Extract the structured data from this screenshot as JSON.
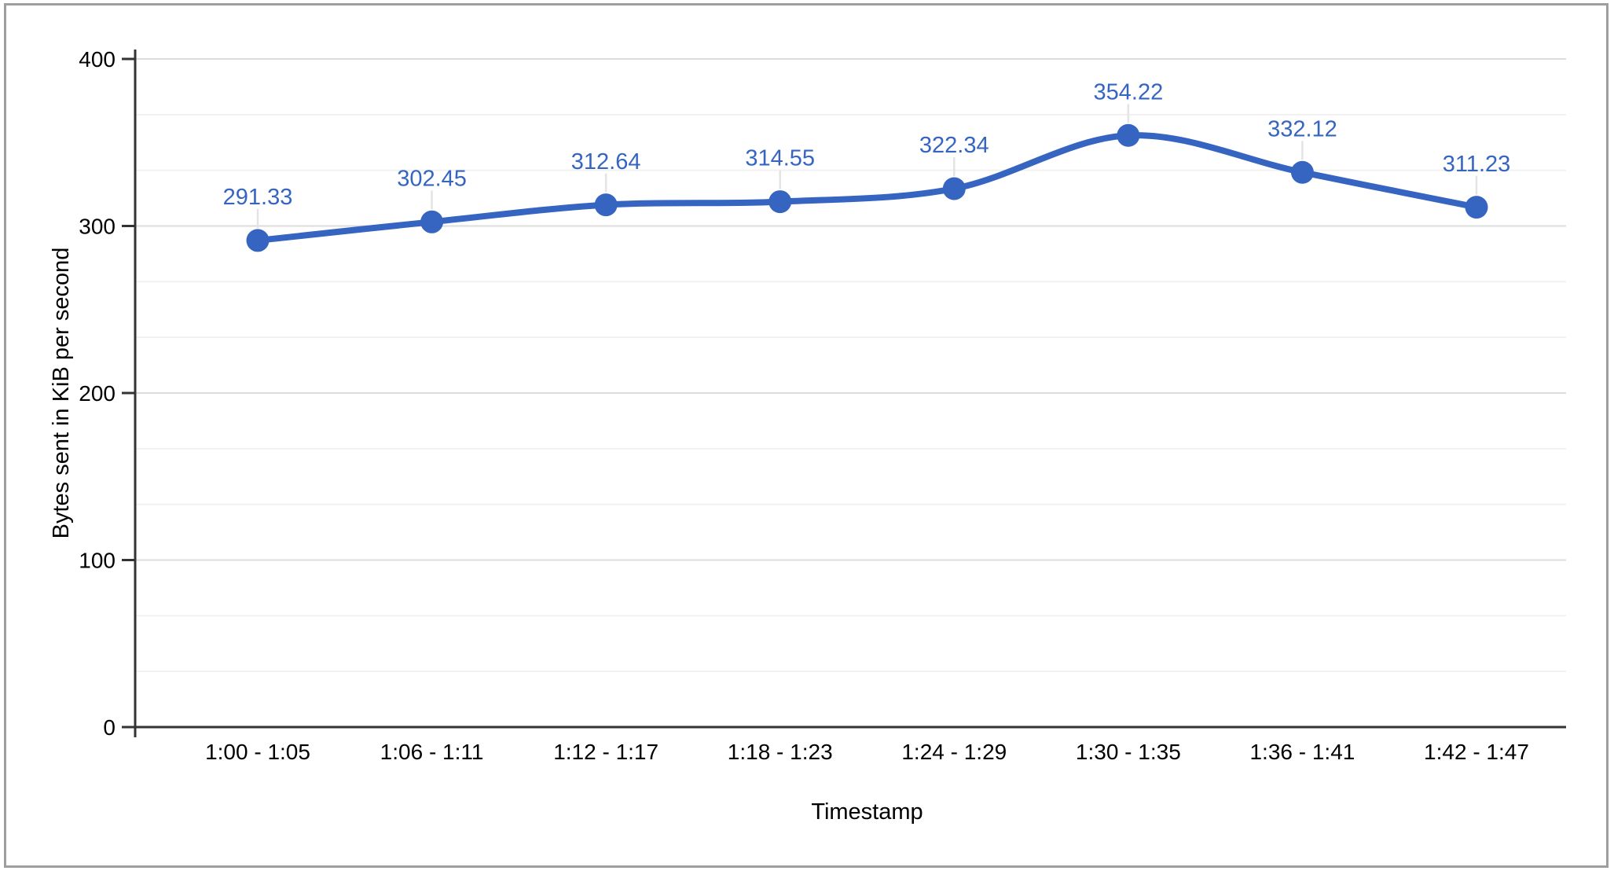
{
  "chart_data": {
    "type": "line",
    "smooth": true,
    "categories": [
      "1:00 - 1:05",
      "1:06 - 1:11",
      "1:12 - 1:17",
      "1:18 - 1:23",
      "1:24 - 1:29",
      "1:30 - 1:35",
      "1:36 - 1:41",
      "1:42 - 1:47"
    ],
    "series": [
      {
        "values": [
          291.33,
          302.45,
          312.64,
          314.55,
          322.34,
          354.22,
          332.12,
          311.23
        ],
        "point_labels": [
          "291.33",
          "302.45",
          "312.64",
          "314.55",
          "322.34",
          "354.22",
          "332.12",
          "311.23"
        ]
      }
    ],
    "title": "",
    "xlabel": "Timestamp",
    "ylabel": "Bytes sent in KiB per second",
    "ylim": [
      0,
      400
    ],
    "y_major_ticks": [
      "0",
      "100",
      "200",
      "300",
      "400"
    ],
    "y_major_tick_values": [
      0,
      100,
      200,
      300,
      400
    ],
    "y_minor_divisions": 3,
    "grid": true,
    "legend_position": "none"
  },
  "colors": {
    "series_line": "#3565C1",
    "series_marker": "#3565C1",
    "data_label_text": "#3565C1",
    "leader_line": "#E4E4E4",
    "major_gridline": "#DCDCDC",
    "minor_gridline": "#F1F1F1",
    "axis_line": "#333333",
    "tick_mark": "#333333",
    "tick_label_text": "#000000",
    "axis_title_text": "#000000",
    "frame_border": "#9E9E9E",
    "background": "#FFFFFF"
  }
}
